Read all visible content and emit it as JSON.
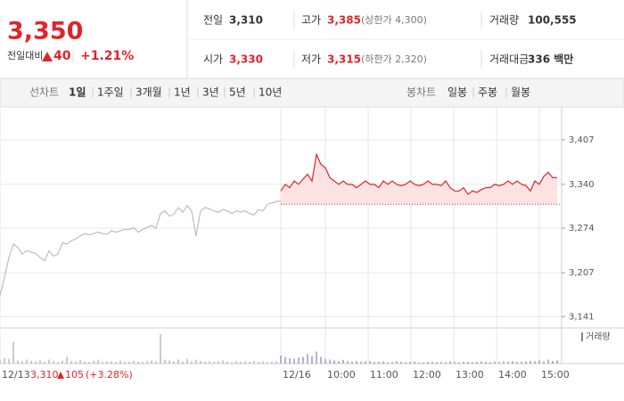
{
  "header": {
    "price": "3,350",
    "change_label": "전일대비",
    "change": "40",
    "change_rate": "+1.21%",
    "stats": [
      {
        "label": "전일",
        "value": "3,310"
      },
      {
        "label": "고가",
        "value": "3,385",
        "note": "(상한가 4,300)"
      },
      {
        "label": "거래량",
        "value": "100,555"
      },
      {
        "label": "시가",
        "value": "3,330"
      },
      {
        "label": "저가",
        "value": "3,315",
        "note": "(하한가 2,320)"
      },
      {
        "label": "거래대금",
        "value": "336 백만"
      }
    ]
  },
  "tabs": {
    "line_label": "선차트",
    "line": [
      "1일",
      "1주일",
      "3개월",
      "1년",
      "3년",
      "5년",
      "10년"
    ],
    "selected": 0,
    "candle_label": "봉차트",
    "candle": [
      "일봉",
      "주봉",
      "월봉"
    ]
  },
  "prev_day": {
    "close": "3,310",
    "change": "105",
    "change_rate": "(+3.28%)"
  },
  "chart_data": {
    "type": "line",
    "x": [
      0,
      1,
      2,
      3,
      4,
      5,
      6,
      7,
      8,
      9,
      10,
      11,
      12,
      13,
      14,
      15,
      16,
      17,
      18,
      19,
      20,
      21,
      22,
      23,
      24,
      25,
      26,
      27,
      28,
      29,
      30,
      31,
      32,
      33,
      34,
      35,
      36,
      37,
      38,
      39,
      40,
      41,
      42,
      43,
      44,
      45,
      46,
      47,
      48,
      49,
      50,
      51,
      52,
      53,
      54,
      55,
      56,
      57,
      58,
      59,
      60,
      61,
      62,
      63,
      64,
      65,
      66,
      67,
      68,
      69,
      70,
      71,
      72,
      73,
      74,
      75,
      76,
      77,
      78,
      79,
      80,
      81,
      82,
      83,
      84,
      85,
      86,
      87,
      88,
      89,
      90,
      91,
      92,
      93,
      94,
      95,
      96,
      97,
      98,
      99,
      100,
      101,
      102,
      103,
      104,
      105,
      106,
      107,
      108,
      109,
      110,
      111,
      112,
      113,
      114,
      115,
      116,
      117,
      118,
      119,
      120,
      121,
      122,
      123,
      124,
      125
    ],
    "series": [
      {
        "color": "#bdbdbd",
        "values": [
          3173,
          3200,
          3230,
          3250,
          3245,
          3235,
          3240,
          3238,
          3236,
          3230,
          3225,
          3240,
          3232,
          3235,
          3252,
          3250,
          3255,
          3258,
          3262,
          3266,
          3264,
          3266,
          3268,
          3266,
          3265,
          3270,
          3268,
          3270,
          3272,
          3272,
          3275,
          3268,
          3272,
          3275,
          3278,
          3274,
          3296,
          3300,
          3292,
          3295,
          3305,
          3298,
          3308,
          3300,
          3262,
          3300,
          3305,
          3303,
          3300,
          3298,
          3302,
          3300,
          3296,
          3300,
          3298,
          3300,
          3296,
          3294,
          3302,
          3300,
          3310,
          3312,
          3314,
          3315,
          null,
          null,
          null,
          null,
          null,
          null,
          null,
          null,
          null,
          null,
          null,
          null,
          null,
          null,
          null,
          null,
          null,
          null,
          null,
          null,
          null,
          null,
          null,
          null,
          null,
          null,
          null,
          null,
          null,
          null,
          null,
          null,
          null,
          null,
          null,
          null,
          null,
          null,
          null,
          null,
          null,
          null,
          null,
          null,
          null,
          null,
          null,
          null,
          null,
          null,
          null,
          null,
          null,
          null,
          null,
          null,
          null,
          null,
          null,
          null,
          null,
          null
        ]
      },
      {
        "color": "#e0242a",
        "area_color": "#fde2e4",
        "values": [
          null,
          null,
          null,
          null,
          null,
          null,
          null,
          null,
          null,
          null,
          null,
          null,
          null,
          null,
          null,
          null,
          null,
          null,
          null,
          null,
          null,
          null,
          null,
          null,
          null,
          null,
          null,
          null,
          null,
          null,
          null,
          null,
          null,
          null,
          null,
          null,
          null,
          null,
          null,
          null,
          null,
          null,
          null,
          null,
          null,
          null,
          null,
          null,
          null,
          null,
          null,
          null,
          null,
          null,
          null,
          null,
          null,
          null,
          null,
          null,
          null,
          null,
          null,
          3330,
          3340,
          3335,
          3345,
          3340,
          3348,
          3355,
          3345,
          3385,
          3370,
          3365,
          3350,
          3345,
          3340,
          3345,
          3340,
          3340,
          3335,
          3340,
          3345,
          3340,
          3340,
          3335,
          3345,
          3340,
          3345,
          3340,
          3338,
          3340,
          3345,
          3340,
          3338,
          3340,
          3345,
          3340,
          3340,
          3338,
          3345,
          3335,
          3330,
          3330,
          3335,
          3325,
          3330,
          3328,
          3332,
          3335,
          3335,
          3340,
          3338,
          3340,
          3345,
          3340,
          3345,
          3340,
          3338,
          3330,
          3345,
          3340,
          3352,
          3358,
          3350,
          3350
        ]
      },
      {
        "name": "거래량",
        "axis": "y2",
        "color": "#8a7ab8",
        "values": [
          1500,
          2000,
          1800,
          8000,
          1200,
          900,
          1500,
          1000,
          800,
          1200,
          700,
          1500,
          900,
          600,
          1100,
          2500,
          900,
          700,
          1300,
          800,
          600,
          1000,
          1400,
          700,
          800,
          900,
          600,
          1200,
          800,
          700,
          1000,
          700,
          600,
          900,
          1100,
          800,
          11000,
          1500,
          1200,
          900,
          1600,
          800,
          1800,
          900,
          1400,
          1000,
          700,
          900,
          600,
          800,
          1200,
          700,
          500,
          900,
          600,
          800,
          700,
          1000,
          600,
          800,
          500,
          700,
          900,
          3000,
          2500,
          2000,
          1800,
          2200,
          2500,
          3500,
          2800,
          4500,
          2500,
          1800,
          1500,
          1200,
          1000,
          1400,
          900,
          800,
          1000,
          700,
          800,
          900,
          600,
          700,
          800,
          500,
          600,
          900,
          700,
          500,
          600,
          800,
          500,
          400,
          600,
          700,
          500,
          600,
          500,
          800,
          600,
          500,
          700,
          600,
          500,
          700,
          800,
          600,
          500,
          700,
          600,
          800,
          700,
          900,
          600,
          700,
          800,
          1000,
          900,
          1200,
          800,
          1500,
          1000,
          1200
        ]
      }
    ],
    "inactive_color": "#a8a8a8",
    "reference_line": 3310,
    "xlim": [
      0,
      126
    ],
    "xticks": [
      {
        "value": 0,
        "label": "12/13"
      },
      {
        "value": 63,
        "label": "12/16"
      },
      {
        "value": 73,
        "label": "10:00"
      },
      {
        "value": 82.6,
        "label": "11:00"
      },
      {
        "value": 92.2,
        "label": "12:00"
      },
      {
        "value": 101.8,
        "label": "13:00"
      },
      {
        "value": 111.4,
        "label": "14:00"
      },
      {
        "value": 121,
        "label": "15:00"
      }
    ],
    "ylim": [
      3128,
      3443
    ],
    "yticks": [
      {
        "value": 3407,
        "label": "3,407"
      },
      {
        "value": 3340,
        "label": "3,340"
      },
      {
        "value": 3274,
        "label": "3,274"
      },
      {
        "value": 3207,
        "label": "3,207"
      },
      {
        "value": 3141,
        "label": "3,141"
      }
    ],
    "y2lim": [
      0,
      12000
    ],
    "grid": true
  }
}
